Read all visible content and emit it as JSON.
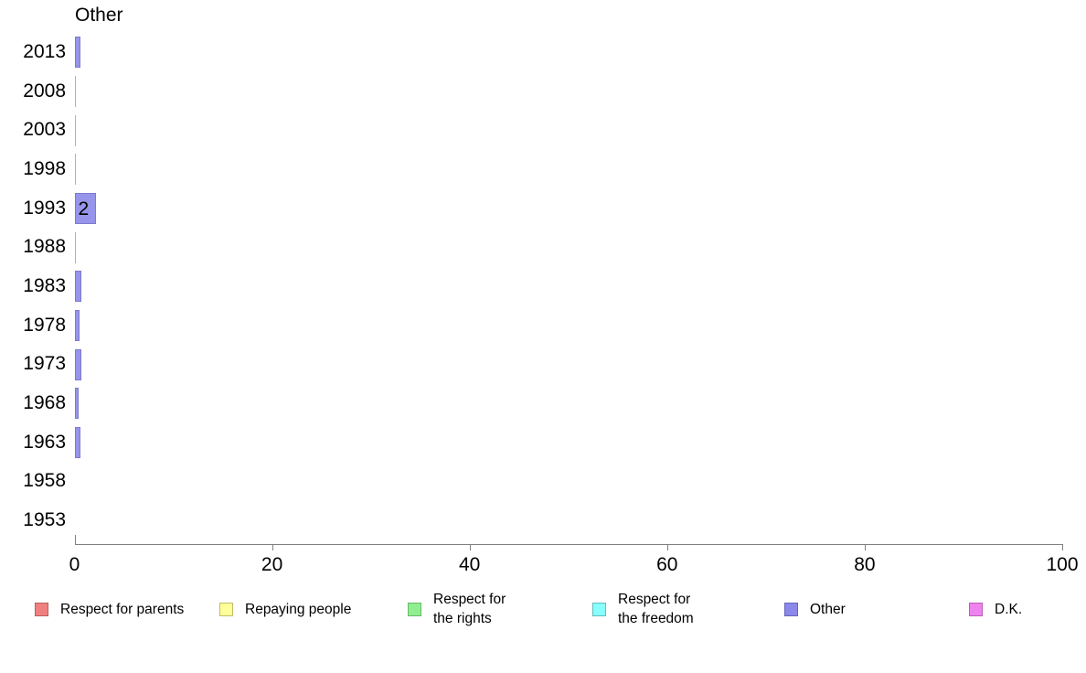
{
  "title": "Other",
  "chart_data": {
    "type": "bar",
    "orientation": "horizontal",
    "title": "Other",
    "categories": [
      "2013",
      "2008",
      "2003",
      "1998",
      "1993",
      "1988",
      "1983",
      "1978",
      "1973",
      "1968",
      "1963",
      "1958",
      "1953"
    ],
    "series": [
      {
        "name": "Other",
        "values": [
          0.4,
          0,
          0,
          0,
          2,
          0,
          0.5,
          0.3,
          0.5,
          0.2,
          0.4,
          null,
          null
        ]
      }
    ],
    "data_labels": [
      null,
      null,
      null,
      null,
      "2",
      null,
      null,
      null,
      null,
      null,
      null,
      null,
      null
    ],
    "xlabel": "",
    "ylabel": "",
    "xlim": [
      0,
      100
    ],
    "x_ticks": [
      "0",
      "20",
      "40",
      "60",
      "80",
      "100"
    ],
    "grid": false,
    "bar_fill": "#9794eb",
    "bar_border": "#7d7ad0",
    "zero_bar_color": "#b3b3b3",
    "legend_position": "bottom",
    "legend": [
      {
        "lines": [
          "Respect for parents"
        ],
        "color": "#f08080",
        "border": "#b85f5f"
      },
      {
        "lines": [
          "Repaying people"
        ],
        "color": "#ffff99",
        "border": "#bdbd6e"
      },
      {
        "lines": [
          "Respect for",
          "the rights"
        ],
        "color": "#90ee90",
        "border": "#69b869"
      },
      {
        "lines": [
          "Respect for",
          "the freedom"
        ],
        "color": "#88ffff",
        "border": "#62bdbd"
      },
      {
        "lines": [
          "Other"
        ],
        "color": "#8b88e9",
        "border": "#6664bd"
      },
      {
        "lines": [
          "D.K."
        ],
        "color": "#ee82ee",
        "border": "#b85fb8"
      }
    ]
  }
}
